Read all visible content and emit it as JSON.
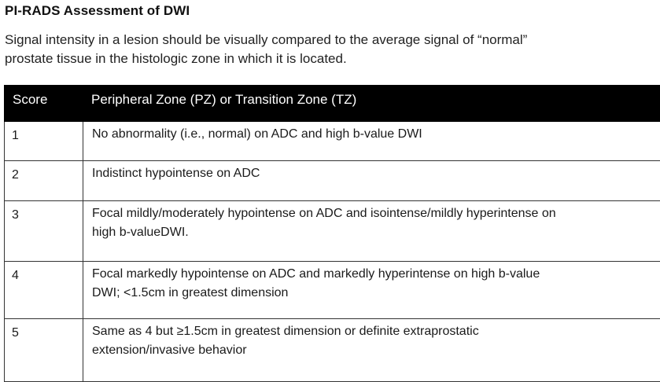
{
  "document": {
    "title": "PI-RADS Assessment of DWI",
    "intro_lines": [
      "Signal intensity in a lesion should be visually compared to the average signal  of “normal”",
      "prostate tissue in the histologic zone in which it is located."
    ]
  },
  "table": {
    "headers": [
      "Score",
      "Peripheral Zone (PZ) or Transition Zone (TZ)"
    ],
    "rows": [
      {
        "score": "1",
        "lines": [
          "No abnormality (i.e., normal) on ADC and high b-value DWI"
        ]
      },
      {
        "score": "2",
        "lines": [
          "Indistinct hypointense on ADC"
        ]
      },
      {
        "score": "3",
        "lines": [
          "Focal mildly/moderately hypointense on ADC and isointense/mildly hyperintense on",
          "high b-valueDWI."
        ]
      },
      {
        "score": "4",
        "lines": [
          "Focal markedly hypointense on ADC and markedly  hyperintense on high b-value",
          "DWI;  <1.5cm in greatest dimension"
        ]
      },
      {
        "score": "5",
        "lines": [
          "Same as 4 but ≥1.5cm in greatest dimension or  definite extraprostatic",
          "extension/invasive behavior"
        ]
      }
    ]
  }
}
